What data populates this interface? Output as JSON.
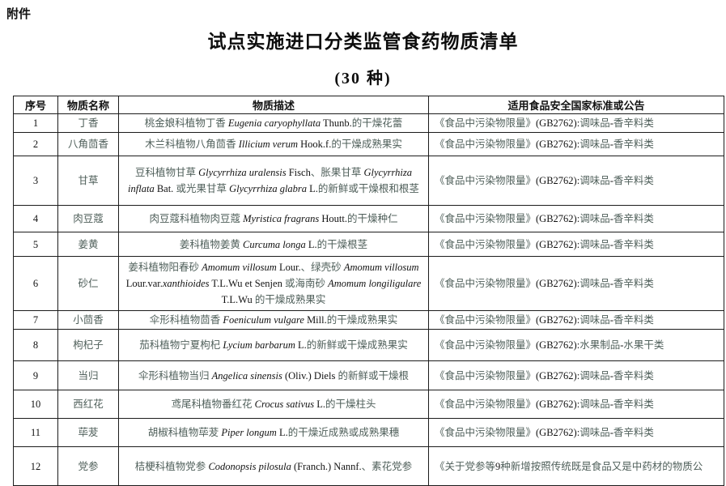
{
  "attachment_label": "附件",
  "title": "试点实施进口分类监管食药物质清单",
  "subtitle": "(30 种)",
  "table": {
    "headers": [
      "序号",
      "物质名称",
      "物质描述",
      "适用食品安全国家标准或公告"
    ],
    "rows": [
      {
        "no": "1",
        "name": "丁香",
        "desc": [
          {
            "text": "桃金娘科植物丁香 "
          },
          {
            "text": "Eugenia caryophyllata",
            "italic": true
          },
          {
            "text": " Thunb.的干燥花蕾"
          }
        ],
        "std": "《食品中污染物限量》(GB2762):调味品-香辛料类"
      },
      {
        "no": "2",
        "name": "八角茴香",
        "desc": [
          {
            "text": "木兰科植物八角茴香 "
          },
          {
            "text": "Illicium verum",
            "italic": true
          },
          {
            "text": " Hook.f.的干燥成熟果实"
          }
        ],
        "std": "《食品中污染物限量》(GB2762):调味品-香辛料类"
      },
      {
        "no": "3",
        "name": "甘草",
        "desc": [
          {
            "text": "豆科植物甘草 "
          },
          {
            "text": "Glycyrrhiza uralensis",
            "italic": true
          },
          {
            "text": " Fisch、胀果甘草 "
          },
          {
            "text": "Glycyrrhiza inflata",
            "italic": true
          },
          {
            "text": " Bat. 或光果甘草 "
          },
          {
            "text": "Glycyrrhiza glabra",
            "italic": true
          },
          {
            "text": " L.的新鲜或干燥根和根茎"
          }
        ],
        "std": "《食品中污染物限量》(GB2762):调味品-香辛料类"
      },
      {
        "no": "4",
        "name": "肉豆蔻",
        "desc": [
          {
            "text": "肉豆蔻科植物肉豆蔻 "
          },
          {
            "text": "Myristica fragrans",
            "italic": true
          },
          {
            "text": " Houtt.的干燥种仁"
          }
        ],
        "std": "《食品中污染物限量》(GB2762):调味品-香辛料类"
      },
      {
        "no": "5",
        "name": "姜黄",
        "desc": [
          {
            "text": "姜科植物姜黄 "
          },
          {
            "text": "Curcuma longa",
            "italic": true
          },
          {
            "text": " L.的干燥根茎"
          }
        ],
        "std": "《食品中污染物限量》(GB2762):调味品-香辛料类"
      },
      {
        "no": "6",
        "name": "砂仁",
        "desc": [
          {
            "text": "姜科植物阳春砂 "
          },
          {
            "text": "Amomum villosum",
            "italic": true
          },
          {
            "text": " Lour.、绿壳砂 "
          },
          {
            "text": "Amomum villosum",
            "italic": true
          },
          {
            "text": " Lour.var."
          },
          {
            "text": "xanthioides",
            "italic": true
          },
          {
            "text": " T.L.Wu et Senjen 或海南砂 "
          },
          {
            "text": "Amomum longiligulare",
            "italic": true
          },
          {
            "text": " T.L.Wu 的干燥成熟果实"
          }
        ],
        "std": "《食品中污染物限量》(GB2762):调味品-香辛料类"
      },
      {
        "no": "7",
        "name": "小茴香",
        "desc": [
          {
            "text": "伞形科植物茴香 "
          },
          {
            "text": "Foeniculum vulgare",
            "italic": true
          },
          {
            "text": " Mill.的干燥成熟果实"
          }
        ],
        "std": "《食品中污染物限量》(GB2762):调味品-香辛料类"
      },
      {
        "no": "8",
        "name": "枸杞子",
        "desc": [
          {
            "text": "茄科植物宁夏枸杞 "
          },
          {
            "text": "Lycium barbarum",
            "italic": true
          },
          {
            "text": " L.的新鲜或干燥成熟果实"
          }
        ],
        "std": "《食品中污染物限量》(GB2762):水果制品-水果干类"
      },
      {
        "no": "9",
        "name": "当归",
        "desc": [
          {
            "text": "伞形科植物当归 "
          },
          {
            "text": "Angelica sinensis",
            "italic": true
          },
          {
            "text": " (Oliv.) Diels 的新鲜或干燥根"
          }
        ],
        "std": "《食品中污染物限量》(GB2762):调味品-香辛料类"
      },
      {
        "no": "10",
        "name": "西红花",
        "desc": [
          {
            "text": "鸢尾科植物番红花 "
          },
          {
            "text": "Crocus sativus",
            "italic": true
          },
          {
            "text": " L.的干燥柱头"
          }
        ],
        "std": "《食品中污染物限量》(GB2762):调味品-香辛料类"
      },
      {
        "no": "11",
        "name": "荜茇",
        "desc": [
          {
            "text": "胡椒科植物荜茇 "
          },
          {
            "text": "Piper longum",
            "italic": true
          },
          {
            "text": " L.的干燥近成熟或成熟果穗"
          }
        ],
        "std": "《食品中污染物限量》(GB2762):调味品-香辛料类"
      },
      {
        "no": "12",
        "name": "党参",
        "desc": [
          {
            "text": "桔梗科植物党参 "
          },
          {
            "text": "Codonopsis pilosula",
            "italic": true
          },
          {
            "text": " (Franch.) Nannf.、素花党参"
          }
        ],
        "std": "《关于党参等9种新增按照传统既是食品又是中药材的物质公"
      }
    ]
  }
}
